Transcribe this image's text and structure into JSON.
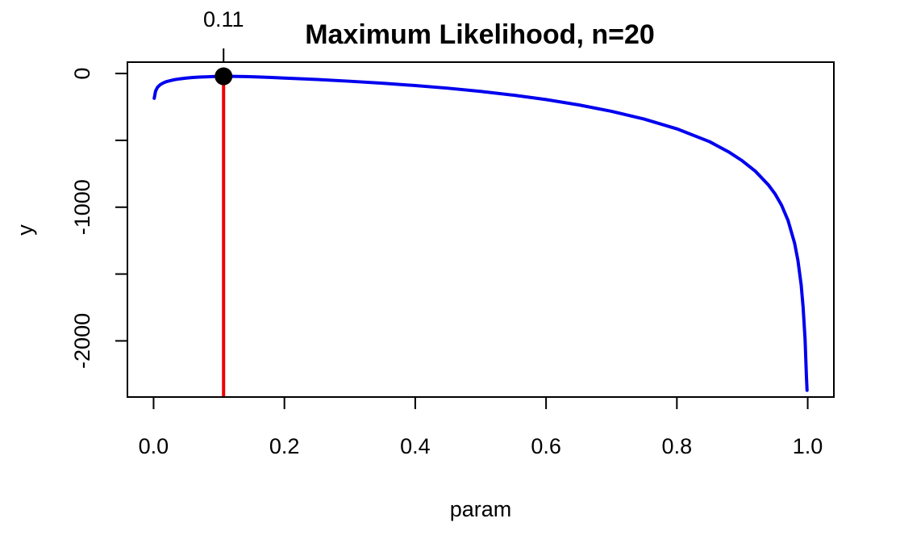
{
  "chart_data": {
    "type": "line",
    "title": "Maximum Likelihood, n=20",
    "xlabel": "param",
    "ylabel": "y",
    "xlim": [
      -0.04,
      1.04
    ],
    "ylim": [
      -2420,
      85
    ],
    "xticks": [
      0.0,
      0.2,
      0.4,
      0.6,
      0.8,
      1.0
    ],
    "xtick_labels": [
      "0.0",
      "0.2",
      "0.4",
      "0.6",
      "0.8",
      "1.0"
    ],
    "yticks": [
      0,
      -500,
      -1000,
      -1500,
      -2000
    ],
    "ytick_labels": [
      "0",
      "",
      "-1000",
      "",
      "-2000"
    ],
    "grid": false,
    "series": [
      {
        "color": "#0000ee",
        "x": [
          0.001,
          0.003,
          0.006,
          0.01,
          0.015,
          0.02,
          0.03,
          0.04,
          0.05,
          0.06,
          0.07,
          0.08,
          0.09,
          0.1,
          0.11,
          0.12,
          0.14,
          0.16,
          0.18,
          0.2,
          0.25,
          0.3,
          0.35,
          0.4,
          0.45,
          0.5,
          0.55,
          0.6,
          0.65,
          0.7,
          0.75,
          0.8,
          0.85,
          0.88,
          0.9,
          0.92,
          0.94,
          0.95,
          0.96,
          0.97,
          0.98,
          0.985,
          0.99,
          0.993,
          0.996,
          0.998,
          0.999
        ],
        "y": [
          -185,
          -132,
          -103,
          -84,
          -70,
          -60,
          -48,
          -40,
          -34,
          -30,
          -27,
          -25,
          -23,
          -22,
          -21,
          -21.3,
          -23,
          -26,
          -30,
          -34,
          -45,
          -58,
          -73,
          -90,
          -110,
          -134,
          -162,
          -195,
          -235,
          -283,
          -341,
          -414,
          -510,
          -589,
          -653,
          -731,
          -834,
          -900,
          -985,
          -1100,
          -1270,
          -1397,
          -1580,
          -1750,
          -1990,
          -2260,
          -2370
        ]
      }
    ],
    "mle": {
      "x": 0.107,
      "y": -21,
      "label": "0.11",
      "line_color": "#ee0000",
      "point_color": "#000000"
    }
  }
}
